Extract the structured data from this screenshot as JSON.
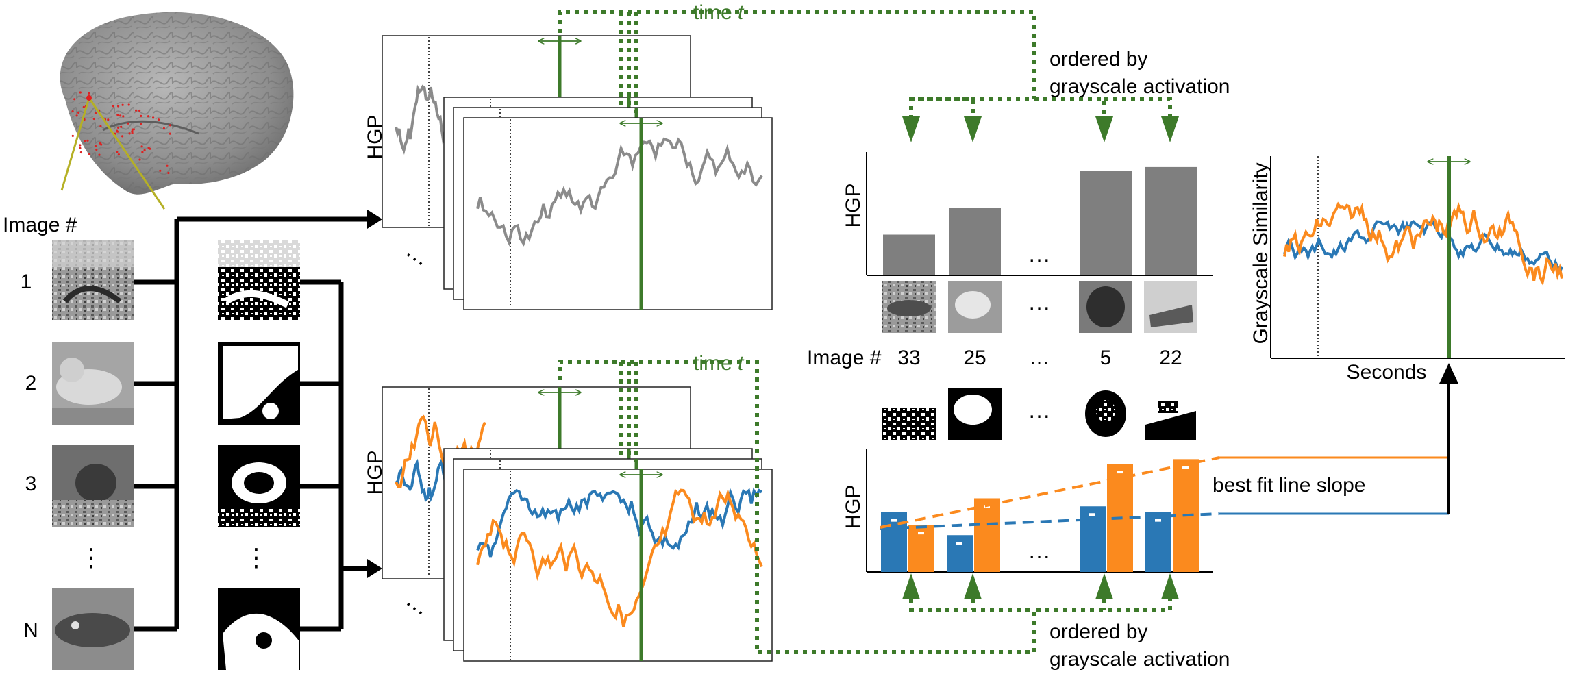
{
  "colors": {
    "green": "#3d7a2a",
    "blue": "#2a78b5",
    "orange": "#fb8a1e",
    "gray": "#7f7f7f",
    "gray_line": "#8b8b8b",
    "black": "#000000",
    "olive": "#b5b025"
  },
  "left": {
    "image_label": "Image #",
    "row_labels": [
      "1",
      "2",
      "3",
      "N"
    ],
    "vdots": "⋮"
  },
  "hgp_label": "HGP",
  "ellipsis": "…",
  "top_flow": {
    "time_label": "time",
    "time_var": "t",
    "ordered_line1": "ordered by",
    "ordered_line2": "grayscale activation"
  },
  "bottom_flow": {
    "time_label": "time",
    "time_var": "t",
    "ordered_line1": "ordered by",
    "ordered_line2": "grayscale activation"
  },
  "mid": {
    "image_label": "Image #",
    "image_numbers": [
      "33",
      "25",
      "…",
      "5",
      "22"
    ]
  },
  "right": {
    "ylabel": "Grayscale Similarity",
    "xlabel": "Seconds"
  },
  "best_fit_label": "best fit line slope",
  "icons": [
    "brain-render",
    "electrode-icon",
    "image-thumbnail",
    "binary-mask-thumbnail",
    "arrow-icon"
  ],
  "chart_data": [
    {
      "type": "bar",
      "categories": [
        "33",
        "25",
        "…",
        "5",
        "22"
      ],
      "series": [
        {
          "values": [
            0.35,
            0.58,
            null,
            0.9,
            0.93
          ]
        }
      ],
      "ylabel": "HGP"
    },
    {
      "type": "bar",
      "categories": [
        "33",
        "25",
        "…",
        "5",
        "22"
      ],
      "series": [
        {
          "values": [
            0.52,
            0.32,
            null,
            0.57,
            0.52
          ]
        },
        {
          "values": [
            0.41,
            0.64,
            null,
            0.94,
            0.98
          ]
        }
      ],
      "ylabel": "HGP"
    }
  ]
}
